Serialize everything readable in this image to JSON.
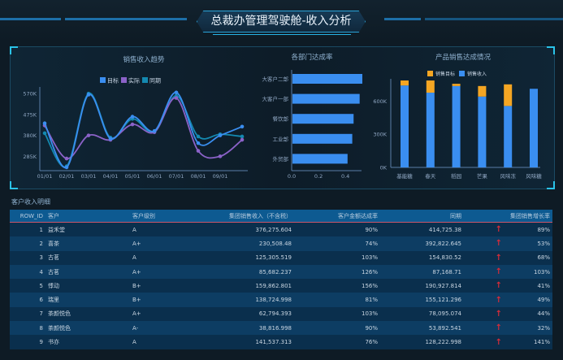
{
  "header": {
    "title": "总裁办管理驾驶舱-收入分析"
  },
  "chart_data": [
    {
      "type": "line",
      "title": "销售收入趋势",
      "categories": [
        "01/01",
        "02/01",
        "03/01",
        "04/01",
        "05/01",
        "06/01",
        "07/01",
        "08/01",
        "09/01",
        ""
      ],
      "ylabel": "",
      "yticks": [
        "285K",
        "380K",
        "475K",
        "570K"
      ],
      "ytick_values": [
        285,
        380,
        475,
        570
      ],
      "ylim": [
        220,
        600
      ],
      "unit": "K",
      "legend": "top",
      "series": [
        {
          "name": "目标",
          "color": "#3a8ef0",
          "values": [
            435,
            235,
            565,
            365,
            465,
            400,
            575,
            345,
            380,
            420
          ]
        },
        {
          "name": "实际",
          "color": "#8b62c8",
          "values": [
            425,
            275,
            380,
            360,
            430,
            395,
            550,
            310,
            285,
            360
          ]
        },
        {
          "name": "同期",
          "color": "#1489b0",
          "values": [
            390,
            240,
            570,
            370,
            455,
            395,
            560,
            375,
            385,
            375
          ]
        }
      ]
    },
    {
      "type": "bar",
      "orientation": "horizontal",
      "title": "各部门达成率",
      "categories": [
        "大客户二部",
        "大客户一部",
        "餐饮部",
        "工业部",
        "外贸部"
      ],
      "values": [
        0.52,
        0.5,
        0.455,
        0.445,
        0.41
      ],
      "xlim": [
        0,
        0.52
      ],
      "xticks": [
        "0.0",
        "0.2",
        "0.4"
      ],
      "color": "#3a8ef0"
    },
    {
      "type": "bar",
      "stacked": true,
      "title": "产品销售达成情况",
      "categories": [
        "基能糖",
        "春天",
        "稻园",
        "芒果",
        "风味冻",
        "风味糖"
      ],
      "legend": "top",
      "ylim": [
        0,
        800
      ],
      "unit": "K",
      "yticks": [
        "0K",
        "300K",
        "600K"
      ],
      "ytick_values": [
        0,
        300,
        600
      ],
      "series": [
        {
          "name": "销售收入",
          "color": "#3a8ef0",
          "values": [
            740,
            675,
            735,
            640,
            555,
            710
          ]
        },
        {
          "name": "销售目标",
          "color": "#f5a623",
          "values": [
            45,
            110,
            20,
            95,
            195,
            0
          ]
        }
      ]
    }
  ],
  "table": {
    "title": "客户收入明细",
    "columns": [
      "ROW_ID",
      "客户",
      "客户级别",
      "集团销售收入（不含税）",
      "客户金额达成率",
      "同期",
      "",
      "集团销售增长率"
    ],
    "rows": [
      [
        "1",
        "益禾堂",
        "A",
        "376,275.604",
        "90%",
        "414,725.38",
        "↑",
        "89%"
      ],
      [
        "2",
        "喜茶",
        "A+",
        "230,508.48",
        "74%",
        "392,822.645",
        "↑",
        "53%"
      ],
      [
        "3",
        "古茗",
        "A",
        "125,305.519",
        "103%",
        "154,830.52",
        "↑",
        "68%"
      ],
      [
        "4",
        "古茗",
        "A+",
        "85,682.237",
        "126%",
        "87,168.71",
        "↑",
        "103%"
      ],
      [
        "5",
        "悸动",
        "B+",
        "159,862.801",
        "156%",
        "190,927.814",
        "↑",
        "41%"
      ],
      [
        "6",
        "瑞里",
        "B+",
        "138,724.998",
        "81%",
        "155,121.296",
        "↑",
        "49%"
      ],
      [
        "7",
        "茶颜悦色",
        "A+",
        "62,794.393",
        "103%",
        "78,095.074",
        "↑",
        "44%"
      ],
      [
        "8",
        "茶颜悦色",
        "A-",
        "38,816.998",
        "90%",
        "53,892.541",
        "↑",
        "32%"
      ],
      [
        "9",
        "书亦",
        "A",
        "141,537.313",
        "76%",
        "128,222.998",
        "↑",
        "141%"
      ]
    ]
  }
}
